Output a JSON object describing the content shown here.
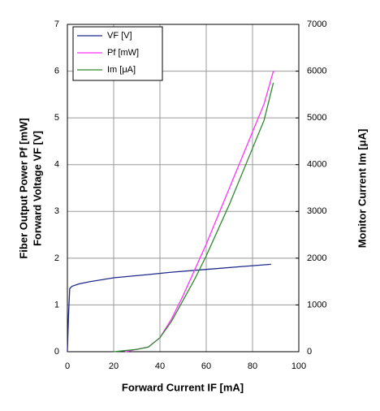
{
  "chart_data": {
    "type": "line",
    "xlabel": "Forward Current IF [mA]",
    "ylabel": [
      "Fiber Output Power Pf [mW]",
      "Forward Voltage VF [V]"
    ],
    "y2label": "Monitor Current Im [μA]",
    "xlim": [
      0,
      100
    ],
    "xticks": [
      0,
      20,
      40,
      60,
      80,
      100
    ],
    "ylim": [
      0,
      7
    ],
    "yticks": [
      0,
      1,
      2,
      3,
      4,
      5,
      6,
      7
    ],
    "y2lim": [
      0,
      7000
    ],
    "y2ticks": [
      0,
      1000,
      2000,
      3000,
      4000,
      5000,
      6000,
      7000
    ],
    "grid": true,
    "legend": "upper left",
    "series": [
      {
        "name": "VF [V]",
        "color": "#1f2a8c",
        "x": [
          0,
          0.5,
          1,
          2,
          5,
          10,
          20,
          35,
          45,
          60,
          75,
          88
        ],
        "values": [
          0,
          0.8,
          1.35,
          1.4,
          1.45,
          1.5,
          1.58,
          1.65,
          1.7,
          1.76,
          1.82,
          1.87
        ]
      },
      {
        "name": "Pf [mW]",
        "color": "#ff33ff",
        "x": [
          25,
          30,
          35,
          40,
          45,
          50,
          55,
          60,
          65,
          70,
          75,
          80,
          85,
          89
        ],
        "values": [
          0,
          0.05,
          0.1,
          0.3,
          0.7,
          1.2,
          1.75,
          2.3,
          2.9,
          3.5,
          4.1,
          4.7,
          5.3,
          6.0
        ]
      },
      {
        "name": "Im [μA]",
        "color": "#2e8b2e",
        "axis": "y2",
        "x": [
          20,
          30,
          35,
          40,
          45,
          50,
          55,
          60,
          65,
          70,
          75,
          80,
          85,
          89
        ],
        "values": [
          0,
          50,
          100,
          300,
          650,
          1100,
          1550,
          2050,
          2600,
          3150,
          3750,
          4350,
          4950,
          5750
        ]
      }
    ]
  }
}
